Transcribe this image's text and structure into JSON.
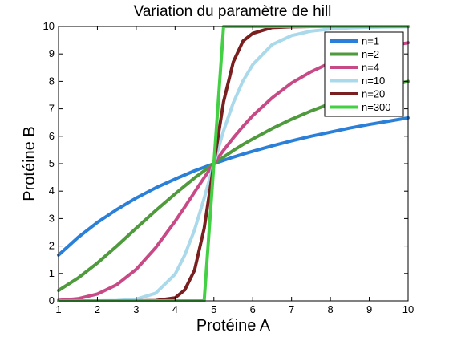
{
  "chart_data": {
    "type": "line",
    "title": "Variation du paramètre de hill",
    "xlabel": "Protéine A",
    "ylabel": "Protéine B",
    "xlim": [
      1,
      10
    ],
    "ylim": [
      0,
      10
    ],
    "xticks": [
      1,
      2,
      3,
      4,
      5,
      6,
      7,
      8,
      9,
      10
    ],
    "yticks": [
      0,
      1,
      2,
      3,
      4,
      5,
      6,
      7,
      8,
      9,
      10
    ],
    "grid": false,
    "legend_position": "top-right",
    "x": [
      1,
      1.5,
      2,
      2.5,
      3,
      3.5,
      4,
      4.25,
      4.5,
      4.75,
      5,
      5.25,
      5.5,
      5.75,
      6,
      6.5,
      7,
      7.5,
      8,
      8.5,
      9,
      9.5,
      10
    ],
    "series": [
      {
        "name": "n=1",
        "color": "#2a7fd8",
        "values": [
          1.67,
          2.31,
          2.86,
          3.33,
          3.75,
          4.12,
          4.44,
          4.59,
          4.74,
          4.87,
          5.0,
          5.12,
          5.24,
          5.35,
          5.45,
          5.65,
          5.83,
          6.0,
          6.15,
          6.3,
          6.43,
          6.55,
          6.67
        ]
      },
      {
        "name": "n=2",
        "color": "#4e9a3c",
        "values": [
          0.38,
          0.83,
          1.38,
          2.0,
          2.65,
          3.29,
          3.9,
          4.19,
          4.48,
          4.74,
          5.0,
          5.24,
          5.48,
          5.7,
          5.9,
          6.28,
          6.62,
          6.92,
          7.19,
          7.43,
          7.64,
          7.83,
          8.0
        ]
      },
      {
        "name": "n=4",
        "color": "#c74a86",
        "values": [
          0.02,
          0.08,
          0.25,
          0.59,
          1.15,
          1.94,
          2.9,
          3.42,
          3.96,
          4.49,
          5.0,
          5.49,
          5.94,
          6.36,
          6.75,
          7.4,
          7.94,
          8.35,
          8.68,
          8.93,
          9.13,
          9.28,
          9.41
        ]
      },
      {
        "name": "n=10",
        "color": "#a9d9ea",
        "values": [
          0.0,
          0.0,
          0.0,
          0.01,
          0.06,
          0.28,
          0.97,
          1.67,
          2.58,
          3.74,
          5.0,
          6.2,
          7.22,
          8.02,
          8.61,
          9.34,
          9.67,
          9.83,
          9.91,
          9.95,
          9.97,
          9.98,
          9.99
        ]
      },
      {
        "name": "n=20",
        "color": "#7a1f1f",
        "values": [
          0.0,
          0.0,
          0.0,
          0.0,
          0.0,
          0.01,
          0.11,
          0.4,
          1.11,
          2.64,
          5.0,
          7.26,
          8.71,
          9.47,
          9.75,
          9.96,
          9.99,
          10.0,
          10.0,
          10.0,
          10.0,
          10.0,
          10.0
        ]
      },
      {
        "name": "n=300",
        "color": "#44d044",
        "values": [
          0.0,
          0.0,
          0.0,
          0.0,
          0.0,
          0.0,
          0.0,
          0.0,
          0.0,
          0.0,
          5.0,
          10.0,
          10.0,
          10.0,
          10.0,
          10.0,
          10.0,
          10.0,
          10.0,
          10.0,
          10.0,
          10.0,
          10.0
        ]
      }
    ]
  }
}
